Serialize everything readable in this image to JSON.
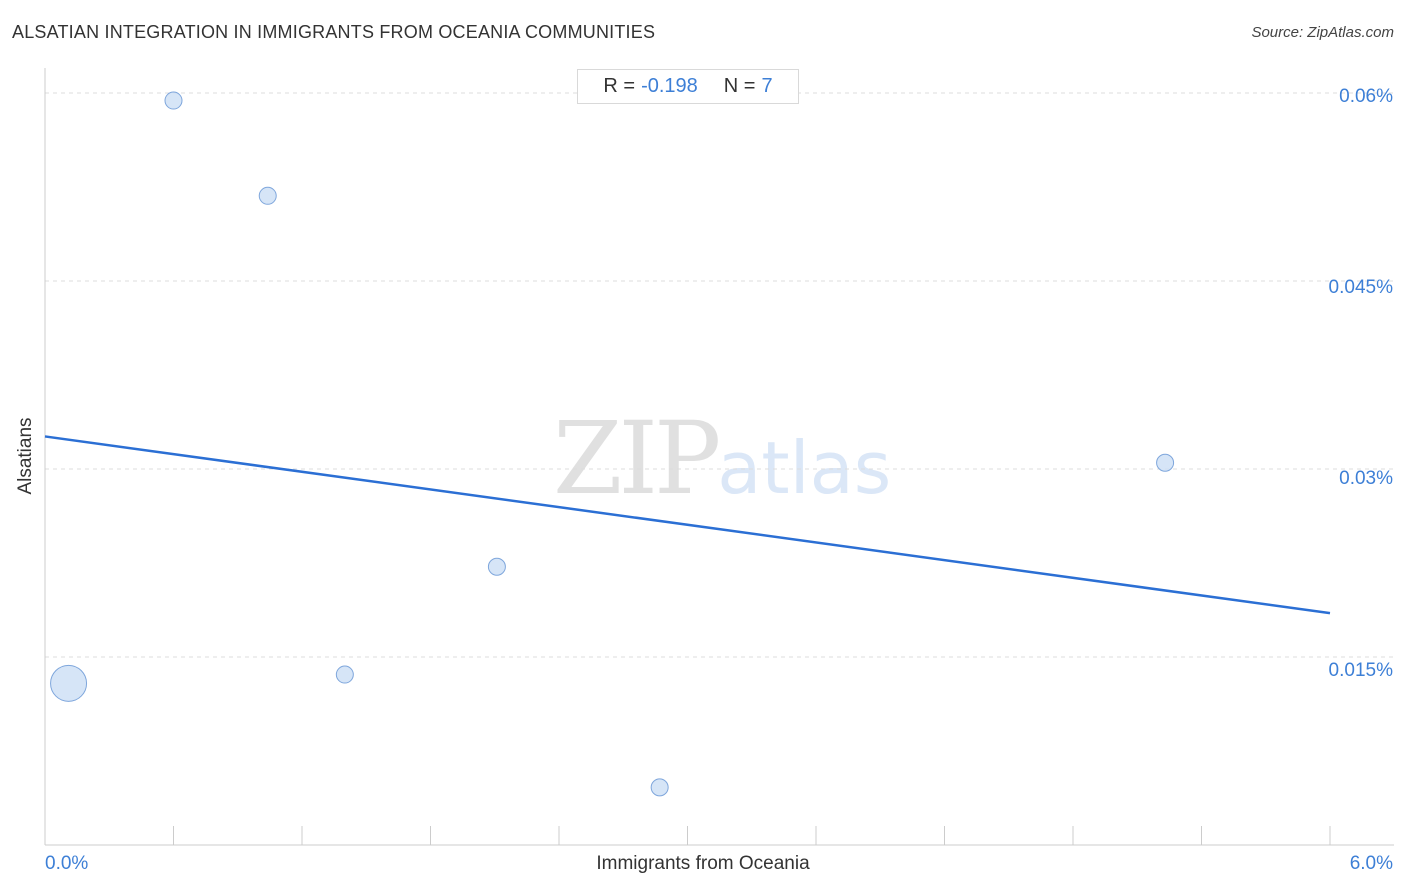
{
  "title": "ALSATIAN INTEGRATION IN IMMIGRANTS FROM OCEANIA COMMUNITIES",
  "source": "Source: ZipAtlas.com",
  "stats": {
    "r_label": "R =",
    "r_value": "-0.198",
    "n_label": "N =",
    "n_value": "7"
  },
  "watermark": {
    "zip": "ZIP",
    "atlas": "atlas"
  },
  "colors": {
    "accent": "#3d7fd6",
    "trend": "#2b6fd4",
    "point_fill": "#cfe0f6",
    "point_stroke": "#7ea6dc",
    "grid": "#dddddd"
  },
  "chart_data": {
    "type": "scatter",
    "title": "ALSATIAN INTEGRATION IN IMMIGRANTS FROM OCEANIA COMMUNITIES",
    "xlabel": "Immigrants from Oceania",
    "ylabel": "Alsatians",
    "xlim": [
      0,
      6
    ],
    "ylim": [
      0,
      0.0612
    ],
    "x_tick_labels": [
      "0.0%",
      "6.0%"
    ],
    "y_ticks": [
      0.015,
      0.03,
      0.045,
      0.06
    ],
    "y_tick_labels": [
      "0.015%",
      "0.03%",
      "0.045%",
      "0.06%"
    ],
    "grid": true,
    "points": [
      {
        "x": 0.11,
        "y": 0.0129,
        "size": "large"
      },
      {
        "x": 0.6,
        "y": 0.0594,
        "size": "small"
      },
      {
        "x": 1.04,
        "y": 0.0518,
        "size": "small"
      },
      {
        "x": 1.4,
        "y": 0.0136,
        "size": "small"
      },
      {
        "x": 2.11,
        "y": 0.0222,
        "size": "small"
      },
      {
        "x": 2.87,
        "y": 0.0046,
        "size": "small"
      },
      {
        "x": 5.23,
        "y": 0.0305,
        "size": "small"
      }
    ],
    "trendline": {
      "x": [
        0,
        6
      ],
      "y": [
        0.0326,
        0.0185
      ]
    },
    "r": -0.198,
    "n": 7
  }
}
